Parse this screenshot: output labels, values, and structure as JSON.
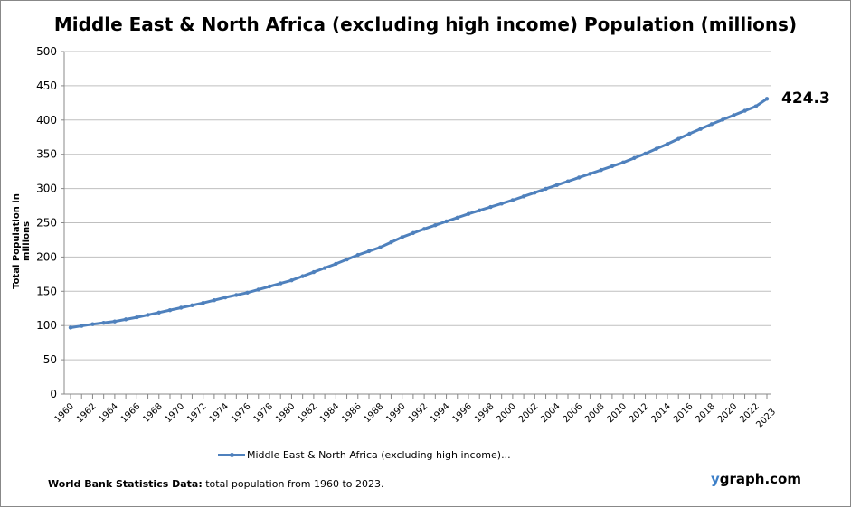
{
  "chart_data": {
    "type": "line",
    "title": "Middle East & North Africa (excluding high income) Population (millions)",
    "ylabel": "Total Population  in millions",
    "xlabel": "",
    "ylim": [
      0,
      500
    ],
    "yticks": [
      0,
      50,
      100,
      150,
      200,
      250,
      300,
      350,
      400,
      450,
      500
    ],
    "grid": true,
    "legend_position": "bottom",
    "x": [
      1960,
      1961,
      1962,
      1963,
      1964,
      1965,
      1966,
      1967,
      1968,
      1969,
      1970,
      1971,
      1972,
      1973,
      1974,
      1975,
      1976,
      1977,
      1978,
      1979,
      1980,
      1981,
      1982,
      1983,
      1984,
      1985,
      1986,
      1987,
      1988,
      1989,
      1990,
      1991,
      1992,
      1993,
      1994,
      1995,
      1996,
      1997,
      1998,
      1999,
      2000,
      2001,
      2002,
      2003,
      2004,
      2005,
      2006,
      2007,
      2008,
      2009,
      2010,
      2011,
      2012,
      2013,
      2014,
      2015,
      2016,
      2017,
      2018,
      2019,
      2020,
      2021,
      2022,
      2023
    ],
    "xtick_labels": [
      "1960",
      "1962",
      "1964",
      "1966",
      "1968",
      "1970",
      "1972",
      "1974",
      "1976",
      "1978",
      "1980",
      "1982",
      "1984",
      "1986",
      "1988",
      "1990",
      "1992",
      "1994",
      "1996",
      "1998",
      "2000",
      "2002",
      "2004",
      "2006",
      "2008",
      "2010",
      "2012",
      "2014",
      "2016",
      "2018",
      "2020",
      "2022",
      "2023"
    ],
    "series": [
      {
        "name": "Middle East & North Africa (excluding high income)...",
        "color": "#4f81bd",
        "values": [
          97,
          99.5,
          102,
          104,
          106,
          109,
          112,
          115.5,
          119,
          122.5,
          126,
          129.5,
          133,
          137,
          141,
          144.5,
          148,
          152.5,
          157,
          161.5,
          166,
          172,
          178,
          184,
          190,
          196.5,
          203,
          208.5,
          214,
          221.5,
          229,
          235,
          241,
          246.5,
          252,
          257.5,
          263,
          268,
          273,
          278,
          283,
          288.5,
          294,
          299.5,
          305,
          310.5,
          316,
          321.5,
          327,
          332.5,
          338,
          344.5,
          351,
          358,
          365,
          372.5,
          380,
          387,
          394,
          400.5,
          407,
          413.5,
          420,
          431
        ]
      }
    ],
    "annotation": "424.3"
  },
  "footer": {
    "source_bold": "World Bank Statistics Data:",
    "source_text": " total population from 1960 to 2023.",
    "brand_y": "y",
    "brand_rest": "graph.com"
  }
}
